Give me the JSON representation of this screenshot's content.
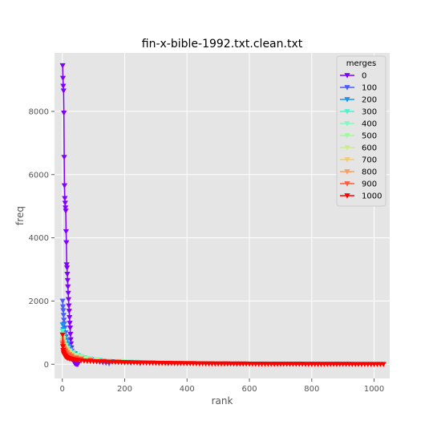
{
  "chart_data": {
    "type": "line",
    "title": "fin-x-bible-1992.txt.clean.txt",
    "xlabel": "rank",
    "ylabel": "freq",
    "xlim": [
      -25,
      1050
    ],
    "ylim": [
      -450,
      9850
    ],
    "xticks": [
      0,
      200,
      400,
      600,
      800,
      1000
    ],
    "yticks": [
      0,
      2000,
      4000,
      6000,
      8000
    ],
    "grid": true,
    "legend": {
      "title": "merges",
      "placement": "top-right"
    },
    "series": [
      {
        "name": "0",
        "color": "#8000ff",
        "x": [
          1,
          2,
          3,
          4,
          5,
          6,
          7,
          8,
          9,
          10,
          11,
          12,
          13,
          14,
          15,
          16,
          17,
          18,
          19,
          20,
          21,
          22,
          23,
          24,
          25,
          26,
          27,
          28,
          29,
          30,
          31,
          32,
          33,
          34,
          35,
          36,
          37,
          38,
          39,
          40,
          41,
          42,
          43,
          44,
          45,
          46,
          47,
          48,
          49,
          50
        ],
        "y": [
          9450,
          9050,
          8800,
          8650,
          7950,
          6550,
          5650,
          5250,
          5100,
          4950,
          4850,
          4200,
          3850,
          3150,
          3050,
          2850,
          2650,
          2450,
          2250,
          2050,
          1850,
          1680,
          1480,
          1300,
          1150,
          950,
          780,
          650,
          520,
          420,
          340,
          270,
          210,
          170,
          130,
          100,
          80,
          60,
          45,
          35,
          28,
          22,
          18,
          15,
          12,
          10,
          8,
          6,
          5,
          4
        ]
      },
      {
        "name": "100",
        "color": "#4a5dfc",
        "x": [
          1,
          2,
          3,
          4,
          5,
          6,
          8,
          10,
          12,
          15,
          18,
          22,
          26,
          30,
          35,
          40,
          45,
          50,
          60,
          70,
          80,
          90,
          100,
          110,
          120,
          130,
          140,
          150
        ],
        "y": [
          2000,
          1820,
          1700,
          1550,
          1400,
          1280,
          1150,
          1000,
          880,
          760,
          650,
          560,
          480,
          410,
          350,
          300,
          260,
          230,
          190,
          160,
          135,
          115,
          100,
          85,
          70,
          55,
          40,
          25
        ]
      },
      {
        "name": "200",
        "color": "#1996f3",
        "x": [
          1,
          3,
          5,
          8,
          12,
          16,
          20,
          25,
          30,
          40,
          50,
          60,
          70,
          80,
          100,
          120,
          140,
          160,
          180,
          200,
          220,
          250
        ],
        "y": [
          1250,
          1100,
          980,
          860,
          740,
          640,
          560,
          480,
          420,
          340,
          280,
          240,
          210,
          180,
          145,
          120,
          100,
          85,
          70,
          55,
          40,
          25
        ]
      },
      {
        "name": "300",
        "color": "#4df3ce",
        "x": [
          1,
          3,
          5,
          8,
          12,
          18,
          25,
          35,
          50,
          70,
          90,
          120,
          150,
          180,
          220,
          260,
          300,
          340
        ],
        "y": [
          1050,
          900,
          800,
          700,
          600,
          500,
          420,
          340,
          270,
          210,
          170,
          135,
          110,
          90,
          70,
          55,
          40,
          25
        ]
      },
      {
        "name": "400",
        "color": "#7ffbc0",
        "x": [
          1,
          3,
          6,
          10,
          15,
          22,
          30,
          45,
          60,
          80,
          110,
          150,
          190,
          240,
          290,
          340,
          400,
          440
        ],
        "y": [
          950,
          820,
          700,
          600,
          510,
          430,
          360,
          290,
          240,
          190,
          150,
          115,
          90,
          70,
          55,
          40,
          28,
          18
        ]
      },
      {
        "name": "500",
        "color": "#a2f99c",
        "x": [
          1,
          3,
          6,
          10,
          15,
          22,
          30,
          45,
          60,
          80,
          110,
          150,
          200,
          260,
          320,
          380,
          450,
          520
        ],
        "y": [
          880,
          760,
          650,
          560,
          480,
          400,
          340,
          270,
          220,
          175,
          140,
          105,
          80,
          60,
          45,
          32,
          22,
          14
        ]
      },
      {
        "name": "600",
        "color": "#cdeb8b",
        "x": [
          1,
          3,
          6,
          10,
          15,
          22,
          30,
          45,
          60,
          90,
          130,
          180,
          240,
          300,
          370,
          440,
          520,
          600
        ],
        "y": [
          820,
          700,
          600,
          520,
          440,
          370,
          310,
          250,
          200,
          155,
          115,
          85,
          62,
          45,
          32,
          22,
          14,
          8
        ]
      },
      {
        "name": "700",
        "color": "#f1cb74",
        "x": [
          1,
          3,
          6,
          10,
          15,
          22,
          30,
          45,
          60,
          90,
          130,
          180,
          240,
          320,
          400,
          480,
          580,
          680
        ],
        "y": [
          760,
          650,
          560,
          480,
          410,
          340,
          290,
          230,
          190,
          145,
          108,
          80,
          58,
          40,
          28,
          18,
          10,
          6
        ]
      },
      {
        "name": "800",
        "color": "#ff9b60",
        "x": [
          1,
          3,
          6,
          10,
          15,
          22,
          30,
          45,
          60,
          90,
          130,
          180,
          250,
          330,
          420,
          520,
          640,
          760,
          820
        ],
        "y": [
          700,
          600,
          520,
          450,
          380,
          320,
          270,
          215,
          175,
          135,
          100,
          74,
          52,
          36,
          24,
          15,
          9,
          5,
          3
        ]
      },
      {
        "name": "900",
        "color": "#ff5a3a",
        "x": [
          1,
          3,
          6,
          10,
          15,
          22,
          30,
          45,
          60,
          90,
          130,
          180,
          250,
          340,
          440,
          560,
          680,
          800,
          880
        ],
        "y": [
          650,
          560,
          480,
          420,
          360,
          300,
          250,
          200,
          165,
          125,
          95,
          70,
          48,
          33,
          22,
          14,
          8,
          5,
          3
        ]
      },
      {
        "name": "1000",
        "color": "#ff0000",
        "x": [
          1,
          2,
          3,
          4,
          5,
          6,
          8,
          10,
          12,
          15,
          18,
          22,
          26,
          30,
          35,
          40,
          45,
          50,
          60,
          70,
          80,
          90,
          100,
          110,
          120,
          130,
          140,
          150,
          160,
          170,
          180,
          190,
          200,
          210,
          220,
          230,
          240,
          250,
          260,
          270,
          280,
          290,
          300,
          310,
          320,
          330,
          340,
          350,
          360,
          370,
          380,
          390,
          400,
          410,
          420,
          430,
          440,
          450,
          460,
          470,
          480,
          490,
          500,
          510,
          520,
          530,
          540,
          550,
          560,
          570,
          580,
          590,
          600,
          610,
          620,
          630,
          640,
          650,
          660,
          670,
          680,
          690,
          700,
          710,
          720,
          730,
          740,
          750,
          760,
          770,
          780,
          790,
          800,
          810,
          820,
          830,
          840,
          850,
          860,
          870,
          880,
          890,
          900,
          910,
          920,
          930,
          940,
          950,
          960,
          970,
          980,
          990,
          1000,
          1010,
          1020,
          1030
        ],
        "y": [
          930,
          560,
          440,
          380,
          330,
          300,
          270,
          250,
          230,
          210,
          195,
          180,
          170,
          160,
          150,
          140,
          132,
          125,
          115,
          107,
          100,
          95,
          90,
          86,
          82,
          78,
          75,
          72,
          69,
          66,
          63,
          60,
          58,
          56,
          54,
          52,
          50,
          48,
          46,
          44,
          42,
          40,
          38,
          36,
          34,
          33,
          32,
          31,
          30,
          29,
          28,
          27,
          26,
          25,
          24,
          23,
          22,
          21,
          20,
          19,
          18,
          17,
          16,
          16,
          15,
          15,
          14,
          14,
          13,
          13,
          12,
          12,
          11,
          11,
          10,
          10,
          9,
          9,
          8,
          8,
          7,
          7,
          7,
          6,
          6,
          6,
          5,
          5,
          5,
          5,
          4,
          4,
          4,
          4,
          3,
          3,
          3,
          3,
          3,
          2,
          2,
          2,
          2,
          2,
          2,
          1,
          1,
          1,
          1,
          1,
          1,
          1,
          1,
          1,
          1,
          1
        ]
      }
    ]
  }
}
